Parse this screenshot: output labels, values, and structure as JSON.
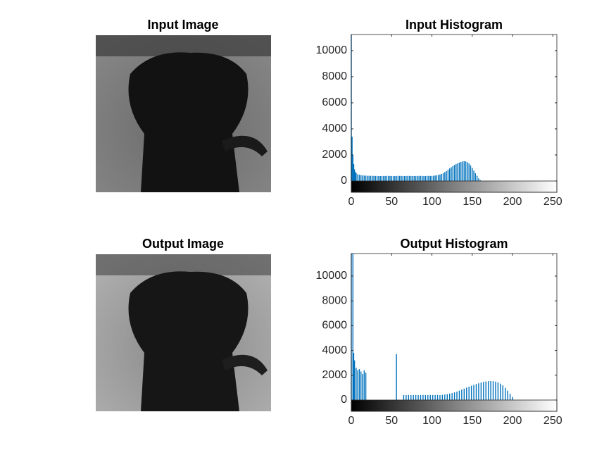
{
  "images": [
    {
      "title": "Input Image"
    },
    {
      "title": "Output Image"
    }
  ],
  "chart_data": [
    {
      "type": "bar",
      "title": "Input Histogram",
      "color": "#0072bd",
      "xlim": [
        0,
        255
      ],
      "ylim": [
        -865,
        11240
      ],
      "xticks": [
        0,
        50,
        100,
        150,
        200,
        250
      ],
      "yticks": [
        0,
        2000,
        4000,
        6000,
        8000,
        10000
      ],
      "x": [
        0,
        1,
        2,
        3,
        4,
        5,
        6,
        8,
        10,
        12,
        14,
        16,
        18,
        20,
        22,
        24,
        26,
        28,
        30,
        32,
        34,
        36,
        38,
        40,
        42,
        44,
        46,
        48,
        50,
        52,
        54,
        56,
        58,
        60,
        62,
        64,
        66,
        68,
        70,
        72,
        74,
        76,
        78,
        80,
        82,
        84,
        86,
        88,
        90,
        92,
        94,
        96,
        98,
        100,
        102,
        104,
        106,
        108,
        110,
        112,
        114,
        116,
        118,
        120,
        122,
        124,
        126,
        128,
        130,
        132,
        134,
        136,
        138,
        140,
        142,
        144,
        146,
        148,
        150,
        152,
        154,
        156,
        158,
        160
      ],
      "values": [
        11240,
        3400,
        2000,
        1300,
        900,
        700,
        600,
        520,
        480,
        450,
        430,
        420,
        410,
        400,
        400,
        395,
        390,
        390,
        385,
        385,
        380,
        380,
        380,
        385,
        385,
        390,
        390,
        385,
        380,
        380,
        380,
        385,
        390,
        390,
        385,
        380,
        380,
        385,
        390,
        390,
        385,
        380,
        380,
        385,
        385,
        390,
        390,
        385,
        380,
        380,
        385,
        390,
        390,
        385,
        400,
        420,
        440,
        460,
        500,
        540,
        600,
        680,
        760,
        860,
        960,
        1060,
        1150,
        1230,
        1300,
        1360,
        1420,
        1460,
        1500,
        1520,
        1500,
        1440,
        1350,
        1200,
        1000,
        800,
        600,
        400,
        200,
        60
      ]
    },
    {
      "type": "bar",
      "title": "Output Histogram",
      "color": "#0072bd",
      "xlim": [
        0,
        255
      ],
      "ylim": [
        -909,
        11818
      ],
      "xticks": [
        0,
        50,
        100,
        150,
        200,
        250
      ],
      "yticks": [
        0,
        2000,
        4000,
        6000,
        8000,
        10000
      ],
      "x": [
        0,
        2,
        3,
        4,
        6,
        8,
        10,
        12,
        14,
        16,
        18,
        56,
        65,
        68,
        71,
        74,
        77,
        80,
        83,
        86,
        89,
        92,
        95,
        98,
        101,
        104,
        107,
        110,
        113,
        116,
        119,
        122,
        125,
        128,
        131,
        134,
        137,
        140,
        143,
        146,
        149,
        152,
        155,
        158,
        161,
        164,
        167,
        170,
        173,
        176,
        179,
        182,
        185,
        188,
        191,
        194,
        197,
        200
      ],
      "values": [
        11818,
        11818,
        3800,
        3200,
        2600,
        2400,
        2500,
        2300,
        2100,
        2400,
        2200,
        3700,
        400,
        400,
        410,
        400,
        400,
        410,
        400,
        400,
        410,
        400,
        400,
        410,
        400,
        400,
        410,
        400,
        420,
        440,
        470,
        520,
        560,
        620,
        680,
        760,
        840,
        920,
        1000,
        1080,
        1150,
        1220,
        1290,
        1350,
        1410,
        1460,
        1500,
        1530,
        1540,
        1520,
        1480,
        1420,
        1320,
        1180,
        980,
        750,
        500,
        250
      ]
    }
  ]
}
